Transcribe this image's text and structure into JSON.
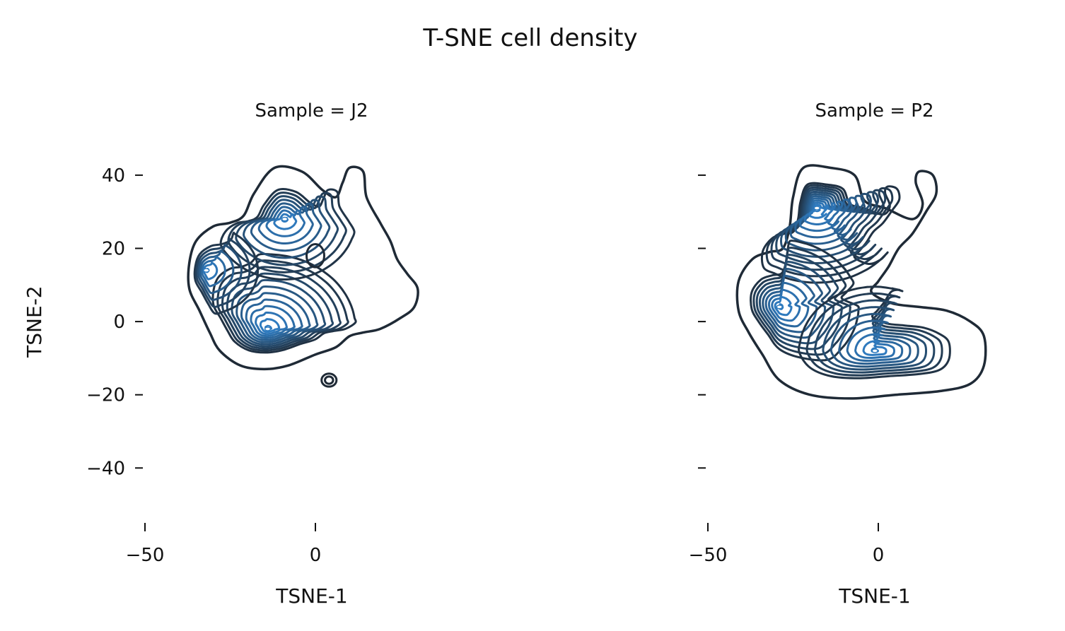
{
  "figure": {
    "title": "T-SNE cell density"
  },
  "colors": {
    "outer_contour": "#1f2a36",
    "inner_contour": "#2f7bbf",
    "text": "#111111"
  },
  "chart_data": [
    {
      "type": "contour",
      "title": "Sample = J2",
      "xlabel": "TSNE-1",
      "ylabel": "TSNE-2",
      "xlim": [
        -50,
        0
      ],
      "ylim": [
        -55,
        45
      ],
      "xticks": [
        -50,
        0
      ],
      "xtick_labels": [
        "−50",
        "0"
      ],
      "yticks": [
        40,
        20,
        0,
        -20,
        -40
      ],
      "ytick_labels": [
        "40",
        "20",
        "0",
        "−20",
        "−40"
      ],
      "grid": false,
      "density_peaks": [
        {
          "x": -14,
          "y": -2,
          "weight": 1.0
        },
        {
          "x": -9,
          "y": 28,
          "weight": 0.6
        },
        {
          "x": -32,
          "y": 14,
          "weight": 0.35
        },
        {
          "x": 0,
          "y": 18,
          "weight": 0.2
        },
        {
          "x": 4,
          "y": -16,
          "weight": 0.05
        }
      ]
    },
    {
      "type": "contour",
      "title": "Sample = P2",
      "xlabel": "TSNE-1",
      "ylabel": "",
      "xlim": [
        -50,
        0
      ],
      "ylim": [
        -55,
        45
      ],
      "xticks": [
        -50,
        0
      ],
      "xtick_labels": [
        "−50",
        "0"
      ],
      "yticks": [
        40,
        20,
        0,
        -20,
        -40
      ],
      "ytick_labels": [
        "",
        "",
        "",
        "",
        ""
      ],
      "grid": false,
      "density_peaks": [
        {
          "x": -18,
          "y": 31,
          "weight": 1.0
        },
        {
          "x": -29,
          "y": 4,
          "weight": 0.8
        },
        {
          "x": -1,
          "y": -8,
          "weight": 0.7
        },
        {
          "x": 12,
          "y": 38,
          "weight": 0.05
        }
      ]
    }
  ]
}
